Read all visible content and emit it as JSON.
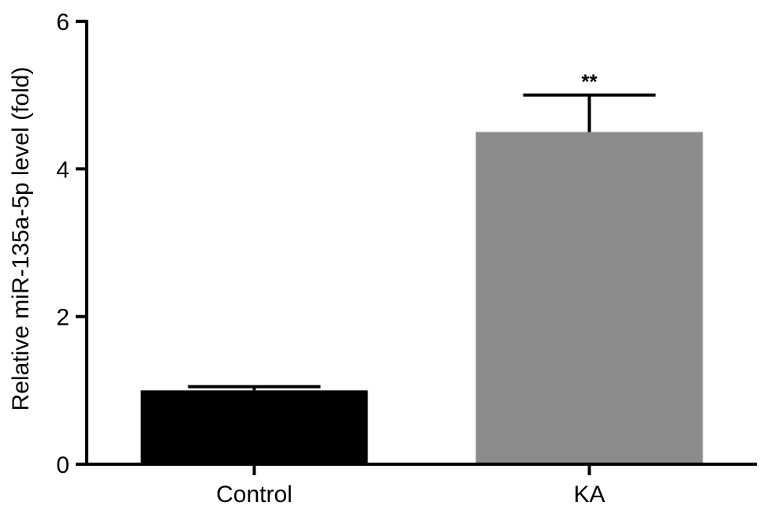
{
  "chart_data": {
    "type": "bar",
    "title": "",
    "xlabel": "",
    "ylabel": "Relative miR-135a-5p level (fold)",
    "ylim": [
      0,
      6
    ],
    "yticks": [
      0,
      2,
      4,
      6
    ],
    "grid": false,
    "legend": "none",
    "categories": [
      "Control",
      "KA"
    ],
    "values": [
      1.0,
      4.5
    ],
    "errors": [
      0.05,
      0.5
    ],
    "colors": [
      "#000000",
      "#8c8c8c"
    ],
    "annotations": [
      {
        "category": "KA",
        "text": "**"
      }
    ]
  }
}
